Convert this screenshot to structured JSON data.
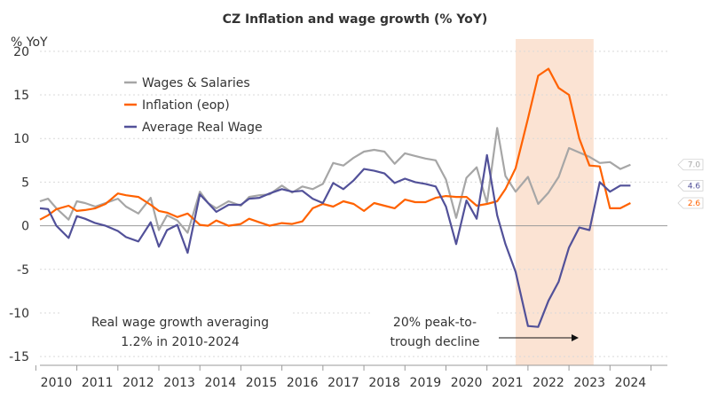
{
  "chart_data": {
    "type": "line",
    "title": "CZ Inflation and wage growth (% YoY)",
    "ylabel": "% YoY",
    "xlabel": "",
    "ylim": [
      -16,
      21
    ],
    "yticks": [
      -15,
      -10,
      -5,
      0,
      5,
      10,
      15,
      20
    ],
    "x_range": [
      2009.6,
      2024.9
    ],
    "year_ticks": [
      "2010",
      "2011",
      "2012",
      "2013",
      "2014",
      "2015",
      "2016",
      "2017",
      "2018",
      "2019",
      "2020",
      "2021",
      "2022",
      "2023",
      "2024"
    ],
    "shaded_region": {
      "start": 2021.2,
      "end": 2023.1,
      "color": "#fbe3d3"
    },
    "legend": {
      "position": "top-left"
    },
    "series": [
      {
        "name": "Wages & Salaries",
        "color": "#a6a6a6",
        "end_label": "7.0",
        "x": [
          2009.6,
          2009.8,
          2010.0,
          2010.3,
          2010.5,
          2010.7,
          2010.95,
          2011.2,
          2011.5,
          2011.7,
          2012.0,
          2012.3,
          2012.5,
          2012.7,
          2012.95,
          2013.2,
          2013.5,
          2013.7,
          2013.9,
          2014.2,
          2014.5,
          2014.7,
          2014.95,
          2015.2,
          2015.5,
          2015.75,
          2016.0,
          2016.25,
          2016.5,
          2016.75,
          2017.0,
          2017.25,
          2017.5,
          2017.75,
          2018.0,
          2018.25,
          2018.5,
          2018.75,
          2019.0,
          2019.25,
          2019.5,
          2019.75,
          2020.0,
          2020.25,
          2020.5,
          2020.75,
          2020.95,
          2021.2,
          2021.5,
          2021.75,
          2022.0,
          2022.25,
          2022.5,
          2022.75,
          2023.0,
          2023.25,
          2023.5,
          2023.75,
          2024.0
        ],
        "values": [
          2.8,
          3.1,
          2.0,
          0.7,
          2.8,
          2.6,
          2.2,
          2.6,
          3.1,
          2.2,
          1.4,
          3.2,
          -0.5,
          1.2,
          0.6,
          -0.8,
          3.9,
          2.6,
          2.0,
          2.8,
          2.3,
          3.3,
          3.5,
          3.6,
          4.6,
          3.8,
          4.5,
          4.2,
          4.8,
          7.2,
          6.9,
          7.8,
          8.5,
          8.7,
          8.5,
          7.1,
          8.3,
          8.0,
          7.7,
          7.5,
          5.3,
          0.9,
          5.5,
          6.7,
          2.6,
          11.2,
          5.7,
          3.9,
          5.6,
          2.5,
          3.8,
          5.6,
          8.9,
          8.4,
          7.9,
          7.2,
          7.3,
          6.5,
          7.0
        ]
      },
      {
        "name": "Inflation (eop)",
        "color": "#ff6200",
        "end_label": "2.6",
        "x": [
          2009.6,
          2009.8,
          2010.0,
          2010.3,
          2010.5,
          2010.7,
          2010.95,
          2011.2,
          2011.5,
          2011.7,
          2012.0,
          2012.3,
          2012.5,
          2012.7,
          2012.95,
          2013.2,
          2013.5,
          2013.7,
          2013.9,
          2014.2,
          2014.5,
          2014.7,
          2014.95,
          2015.2,
          2015.5,
          2015.75,
          2016.0,
          2016.25,
          2016.5,
          2016.75,
          2017.0,
          2017.25,
          2017.5,
          2017.75,
          2018.0,
          2018.25,
          2018.5,
          2018.75,
          2019.0,
          2019.25,
          2019.5,
          2019.75,
          2020.0,
          2020.25,
          2020.5,
          2020.75,
          2020.95,
          2021.2,
          2021.5,
          2021.75,
          2022.0,
          2022.25,
          2022.5,
          2022.75,
          2023.0,
          2023.25,
          2023.5,
          2023.75,
          2024.0
        ],
        "values": [
          0.7,
          1.2,
          1.9,
          2.3,
          1.7,
          1.8,
          2.0,
          2.5,
          3.7,
          3.5,
          3.3,
          2.4,
          1.7,
          1.5,
          1.0,
          1.4,
          0.1,
          0.0,
          0.6,
          0.0,
          0.2,
          0.8,
          0.4,
          0.0,
          0.3,
          0.2,
          0.5,
          2.0,
          2.5,
          2.2,
          2.8,
          2.5,
          1.7,
          2.6,
          2.3,
          2.0,
          3.0,
          2.7,
          2.7,
          3.2,
          3.4,
          3.3,
          3.3,
          2.3,
          2.5,
          2.8,
          4.2,
          6.6,
          12.3,
          17.2,
          18.0,
          15.8,
          15.0,
          10.0,
          6.9,
          6.8,
          2.0,
          2.0,
          2.6
        ]
      },
      {
        "name": "Average Real Wage",
        "color": "#525199",
        "end_label": "4.6",
        "x": [
          2009.6,
          2009.8,
          2010.0,
          2010.3,
          2010.5,
          2010.7,
          2010.95,
          2011.2,
          2011.5,
          2011.7,
          2012.0,
          2012.3,
          2012.5,
          2012.7,
          2012.95,
          2013.2,
          2013.5,
          2013.7,
          2013.9,
          2014.2,
          2014.5,
          2014.7,
          2014.95,
          2015.2,
          2015.5,
          2015.75,
          2016.0,
          2016.25,
          2016.5,
          2016.75,
          2017.0,
          2017.25,
          2017.5,
          2017.75,
          2018.0,
          2018.25,
          2018.5,
          2018.75,
          2019.0,
          2019.25,
          2019.5,
          2019.75,
          2020.0,
          2020.25,
          2020.5,
          2020.75,
          2020.95,
          2021.2,
          2021.5,
          2021.75,
          2022.0,
          2022.25,
          2022.5,
          2022.75,
          2023.0,
          2023.25,
          2023.5,
          2023.75,
          2024.0
        ],
        "values": [
          2.0,
          1.9,
          0.0,
          -1.4,
          1.1,
          0.8,
          0.3,
          0.0,
          -0.6,
          -1.3,
          -1.8,
          0.4,
          -2.4,
          -0.5,
          0.1,
          -3.1,
          3.6,
          2.6,
          1.6,
          2.4,
          2.4,
          3.1,
          3.2,
          3.7,
          4.2,
          3.9,
          4.0,
          3.1,
          2.6,
          4.9,
          4.2,
          5.2,
          6.5,
          6.3,
          6.0,
          4.9,
          5.4,
          5.0,
          4.8,
          4.5,
          2.2,
          -2.1,
          2.9,
          0.8,
          8.1,
          1.2,
          -2.1,
          -5.3,
          -11.5,
          -11.6,
          -8.6,
          -6.4,
          -2.5,
          -0.2,
          -0.5,
          5.0,
          3.9,
          4.6,
          4.6
        ]
      }
    ],
    "annotations": {
      "left_line1": "Real wage growth averaging",
      "left_line2": "1.2% in 2010-2024",
      "right_line1": "20% peak-to-",
      "right_line2": "trough decline"
    }
  }
}
